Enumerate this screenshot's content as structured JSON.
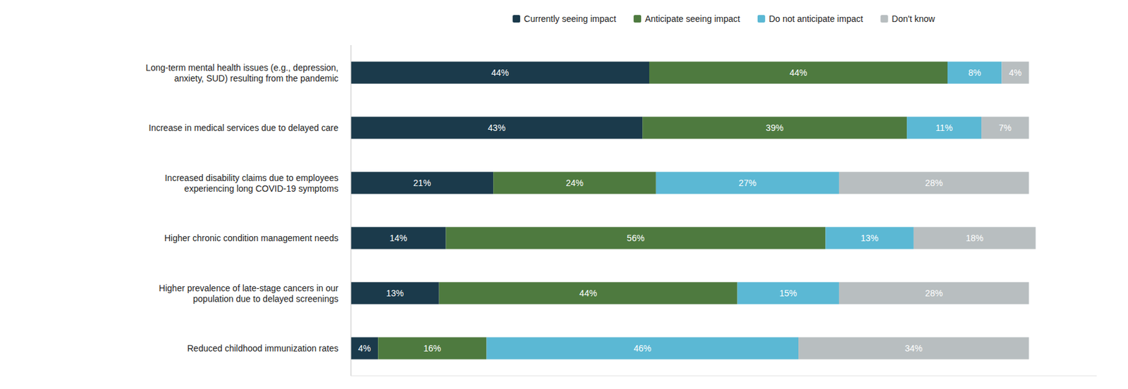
{
  "chart_data": {
    "type": "bar",
    "orientation": "horizontal",
    "stacked": true,
    "categories": [
      "Long-term mental health issues (e.g., depression,\nanxiety, SUD) resulting from the pandemic",
      "Increase in medical services due to delayed care",
      "Increased disability claims due to employees\nexperiencing long COVID-19 symptoms",
      "Higher chronic condition management needs",
      "Higher prevalence of late-stage cancers in our\npopulation due to delayed screenings",
      "Reduced childhood immunization rates"
    ],
    "series": [
      {
        "name": "Currently seeing impact",
        "color": "#1b3a4b",
        "values": [
          44,
          43,
          21,
          14,
          13,
          4
        ],
        "value_labels": [
          "44%",
          "43%",
          "21%",
          "14%",
          "13%",
          "4%"
        ]
      },
      {
        "name": "Anticipate seeing impact",
        "color": "#4e7a3f",
        "values": [
          44,
          39,
          24,
          56,
          44,
          16
        ],
        "value_labels": [
          "44%",
          "39%",
          "24%",
          "56%",
          "44%",
          "16%"
        ]
      },
      {
        "name": "Do not anticipate impact",
        "color": "#5bb8d4",
        "values": [
          8,
          11,
          27,
          13,
          15,
          46
        ],
        "value_labels": [
          "8%",
          "11%",
          "27%",
          "13%",
          "15%",
          "46%"
        ]
      },
      {
        "name": "Don't know",
        "color": "#b8bec0",
        "values": [
          4,
          7,
          28,
          18,
          28,
          34
        ],
        "value_labels": [
          "4%",
          "7%",
          "28%",
          "18%",
          "28%",
          "34%"
        ]
      }
    ],
    "xlim": [
      0,
      110
    ],
    "data_labels": true,
    "tick_labels": false,
    "grid": false,
    "legend": "top"
  }
}
